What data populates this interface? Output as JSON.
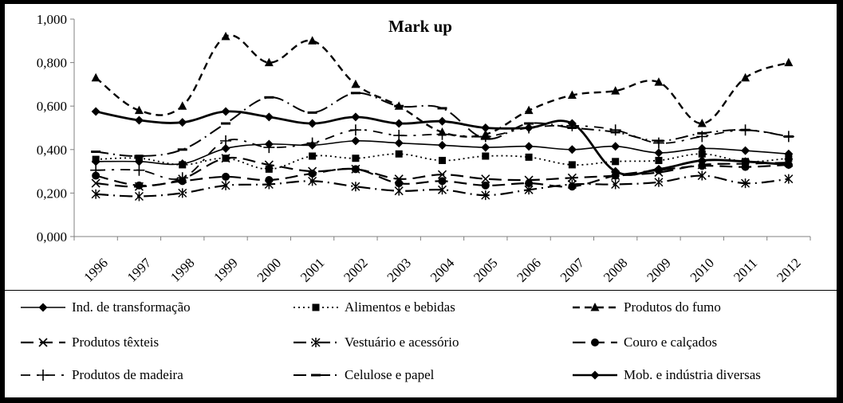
{
  "chart_data": {
    "type": "line",
    "title": "Mark up",
    "xlabel": "",
    "ylabel": "",
    "x": [
      "1996",
      "1997",
      "1998",
      "1999",
      "2000",
      "2001",
      "2002",
      "2003",
      "2004",
      "2005",
      "2006",
      "2007",
      "2008",
      "2009",
      "2010",
      "2011",
      "2012"
    ],
    "ylim": [
      0,
      1
    ],
    "yticks": [
      "0,000",
      "0,200",
      "0,400",
      "0,600",
      "0,800",
      "1,000"
    ],
    "legend_position": "bottom",
    "grid": false,
    "series": [
      {
        "name": "Ind. de transformação",
        "marker": "diamond",
        "dash": "solid",
        "width": 1.6,
        "values": [
          0.345,
          0.345,
          0.335,
          0.405,
          0.425,
          0.42,
          0.44,
          0.43,
          0.42,
          0.41,
          0.415,
          0.4,
          0.415,
          0.385,
          0.405,
          0.395,
          0.38
        ]
      },
      {
        "name": "Alimentos e bebidas",
        "marker": "square",
        "dash": "dot",
        "width": 1.8,
        "values": [
          0.355,
          0.36,
          0.33,
          0.36,
          0.31,
          0.37,
          0.36,
          0.38,
          0.35,
          0.37,
          0.365,
          0.33,
          0.345,
          0.35,
          0.38,
          0.345,
          0.36
        ]
      },
      {
        "name": "Produtos do fumo",
        "marker": "triangle",
        "dash": "dash",
        "width": 2.4,
        "values": [
          0.73,
          0.58,
          0.6,
          0.92,
          0.8,
          0.9,
          0.7,
          0.6,
          0.48,
          0.47,
          0.58,
          0.65,
          0.67,
          0.71,
          0.52,
          0.73,
          0.8
        ]
      },
      {
        "name": "Produtos têxteis",
        "marker": "x",
        "dash": "longdash",
        "width": 2.2,
        "values": [
          0.245,
          0.23,
          0.265,
          0.36,
          0.33,
          0.3,
          0.31,
          0.265,
          0.285,
          0.265,
          0.26,
          0.27,
          0.28,
          0.295,
          0.33,
          0.335,
          0.34
        ]
      },
      {
        "name": "Vestuário e acessório",
        "marker": "star",
        "dash": "dashdot",
        "width": 2.2,
        "values": [
          0.195,
          0.185,
          0.2,
          0.235,
          0.24,
          0.255,
          0.23,
          0.21,
          0.215,
          0.19,
          0.215,
          0.24,
          0.24,
          0.25,
          0.28,
          0.245,
          0.265
        ]
      },
      {
        "name": "Couro e calçados",
        "marker": "circle",
        "dash": "longdash",
        "width": 2.2,
        "values": [
          0.28,
          0.235,
          0.255,
          0.275,
          0.26,
          0.29,
          0.31,
          0.245,
          0.255,
          0.235,
          0.245,
          0.23,
          0.28,
          0.305,
          0.325,
          0.32,
          0.33
        ]
      },
      {
        "name": "Produtos de madeira",
        "marker": "plus",
        "dash": "dashdot2",
        "width": 1.8,
        "values": [
          0.305,
          0.305,
          0.27,
          0.44,
          0.41,
          0.43,
          0.49,
          0.465,
          0.47,
          0.46,
          0.5,
          0.51,
          0.49,
          0.43,
          0.46,
          0.49,
          0.46
        ]
      },
      {
        "name": "Celulose e papel",
        "marker": "dashmark",
        "dash": "dashdot",
        "width": 2.0,
        "values": [
          0.39,
          0.37,
          0.4,
          0.52,
          0.64,
          0.57,
          0.66,
          0.6,
          0.59,
          0.45,
          0.52,
          0.5,
          0.48,
          0.44,
          0.475,
          0.49,
          0.46
        ]
      },
      {
        "name": "Mob. e indústria diversas",
        "marker": "diamond",
        "dash": "solid",
        "width": 2.8,
        "values": [
          0.575,
          0.535,
          0.525,
          0.575,
          0.55,
          0.52,
          0.55,
          0.52,
          0.53,
          0.5,
          0.5,
          0.52,
          0.3,
          0.31,
          0.35,
          0.345,
          0.33
        ]
      }
    ]
  }
}
